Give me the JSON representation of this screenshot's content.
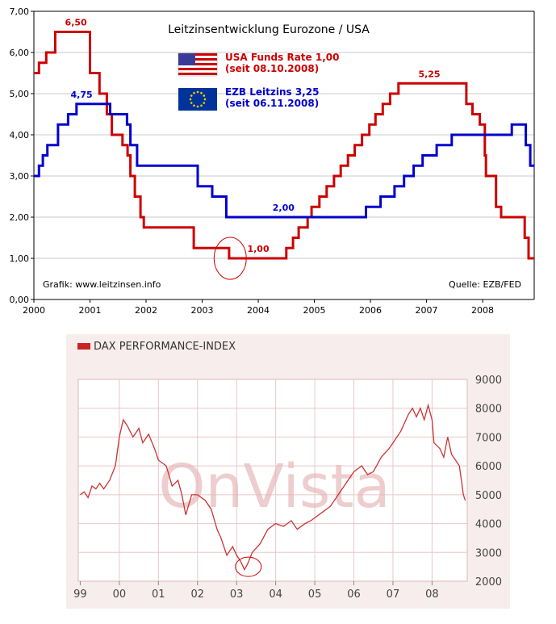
{
  "chart_data": [
    {
      "type": "line",
      "title": "Leitzinsentwicklung Eurozone / USA",
      "xlim": [
        2000,
        2008.92
      ],
      "ylim": [
        0,
        7
      ],
      "x_ticks": [
        "2000",
        "2001",
        "2002",
        "2003",
        "2004",
        "2005",
        "2006",
        "2007",
        "2008"
      ],
      "y_ticks": [
        "0,00",
        "1,00",
        "2,00",
        "3,00",
        "4,00",
        "5,00",
        "6,00",
        "7,00"
      ],
      "colors": {
        "usa": "#cc0000",
        "ezb": "#0000cc",
        "grid": "#c8c8c8",
        "axis": "#000000"
      },
      "legend": [
        {
          "flag": "us-flag-icon",
          "line1": "USA Funds Rate 1,00",
          "line2": "(seit 08.10.2008)",
          "color": "#cc0000"
        },
        {
          "flag": "eu-flag-icon",
          "line1": "EZB Leitzins 3,25",
          "line2": "(seit 06.11.2008)",
          "color": "#0000cc"
        }
      ],
      "credit_left": "Grafik: www.leitzinsen.info",
      "credit_right": "Quelle: EZB/FED",
      "series": [
        {
          "name": "USA Funds Rate",
          "color": "#cc0000",
          "steps": [
            [
              2000.0,
              5.5
            ],
            [
              2000.09,
              5.75
            ],
            [
              2000.22,
              6.0
            ],
            [
              2000.38,
              6.5
            ],
            [
              2001.0,
              5.5
            ],
            [
              2001.17,
              5.0
            ],
            [
              2001.3,
              4.5
            ],
            [
              2001.39,
              4.0
            ],
            [
              2001.58,
              3.75
            ],
            [
              2001.67,
              3.5
            ],
            [
              2001.72,
              3.0
            ],
            [
              2001.8,
              2.5
            ],
            [
              2001.9,
              2.0
            ],
            [
              2001.96,
              1.75
            ],
            [
              2002.85,
              1.25
            ],
            [
              2003.48,
              1.0
            ],
            [
              2004.5,
              1.25
            ],
            [
              2004.62,
              1.5
            ],
            [
              2004.72,
              1.75
            ],
            [
              2004.88,
              2.0
            ],
            [
              2004.95,
              2.25
            ],
            [
              2005.09,
              2.5
            ],
            [
              2005.22,
              2.75
            ],
            [
              2005.35,
              3.0
            ],
            [
              2005.47,
              3.25
            ],
            [
              2005.6,
              3.5
            ],
            [
              2005.72,
              3.75
            ],
            [
              2005.85,
              4.0
            ],
            [
              2005.98,
              4.25
            ],
            [
              2006.09,
              4.5
            ],
            [
              2006.22,
              4.75
            ],
            [
              2006.35,
              5.0
            ],
            [
              2006.5,
              5.25
            ],
            [
              2007.71,
              4.75
            ],
            [
              2007.82,
              4.5
            ],
            [
              2007.95,
              4.25
            ],
            [
              2008.04,
              3.5
            ],
            [
              2008.06,
              3.0
            ],
            [
              2008.24,
              2.25
            ],
            [
              2008.33,
              2.0
            ],
            [
              2008.75,
              1.5
            ],
            [
              2008.82,
              1.0
            ],
            [
              2008.92,
              1.0
            ]
          ]
        },
        {
          "name": "EZB Leitzins",
          "color": "#0000cc",
          "steps": [
            [
              2000.0,
              3.0
            ],
            [
              2000.09,
              3.25
            ],
            [
              2000.16,
              3.5
            ],
            [
              2000.24,
              3.75
            ],
            [
              2000.43,
              4.25
            ],
            [
              2000.61,
              4.5
            ],
            [
              2000.76,
              4.75
            ],
            [
              2001.36,
              4.5
            ],
            [
              2001.66,
              4.25
            ],
            [
              2001.72,
              3.75
            ],
            [
              2001.84,
              3.25
            ],
            [
              2002.92,
              2.75
            ],
            [
              2003.18,
              2.5
            ],
            [
              2003.43,
              2.0
            ],
            [
              2005.92,
              2.25
            ],
            [
              2006.18,
              2.5
            ],
            [
              2006.43,
              2.75
            ],
            [
              2006.6,
              3.0
            ],
            [
              2006.77,
              3.25
            ],
            [
              2006.93,
              3.5
            ],
            [
              2007.18,
              3.75
            ],
            [
              2007.45,
              4.0
            ],
            [
              2008.52,
              4.25
            ],
            [
              2008.77,
              3.75
            ],
            [
              2008.85,
              3.25
            ],
            [
              2008.92,
              3.25
            ]
          ]
        }
      ],
      "annotations": [
        {
          "text": "6,50",
          "x": 2000.75,
          "y": 6.5,
          "series": "usa"
        },
        {
          "text": "4,75",
          "x": 2000.85,
          "y": 4.75,
          "series": "ezb"
        },
        {
          "text": "1,00",
          "x": 2004.0,
          "y": 1.0,
          "series": "usa"
        },
        {
          "text": "2,00",
          "x": 2004.45,
          "y": 2.0,
          "series": "ezb"
        },
        {
          "text": "5,25",
          "x": 2007.05,
          "y": 5.25,
          "series": "usa"
        }
      ],
      "highlight": {
        "x": 2003.5,
        "y": 1.0
      }
    },
    {
      "type": "line",
      "title": "DAX PERFORMANCE-INDEX",
      "xlim": [
        1998.95,
        2008.9
      ],
      "ylim": [
        2000,
        9000
      ],
      "x_ticks": [
        "99",
        "00",
        "01",
        "02",
        "03",
        "04",
        "05",
        "06",
        "07",
        "08"
      ],
      "y_ticks": [
        "2000",
        "3000",
        "4000",
        "5000",
        "6000",
        "7000",
        "8000",
        "9000"
      ],
      "colors": {
        "line": "#cc3333",
        "legend_swatch": "#cc2222",
        "plot_bg": "#ffffff",
        "frame_bg": "#f8eded",
        "grid": "#e8c8c8",
        "tick_text": "#444444"
      },
      "watermark": "OnVista",
      "series": [
        {
          "name": "DAX",
          "x": [
            1999.0,
            1999.1,
            1999.2,
            1999.3,
            1999.4,
            1999.5,
            1999.6,
            1999.75,
            1999.9,
            2000.0,
            2000.1,
            2000.2,
            2000.35,
            2000.5,
            2000.6,
            2000.75,
            2000.9,
            2001.0,
            2001.2,
            2001.35,
            2001.5,
            2001.6,
            2001.7,
            2001.85,
            2002.0,
            2002.2,
            2002.35,
            2002.5,
            2002.6,
            2002.75,
            2002.9,
            2003.0,
            2003.1,
            2003.2,
            2003.28,
            2003.4,
            2003.6,
            2003.8,
            2004.0,
            2004.2,
            2004.4,
            2004.55,
            2004.75,
            2004.9,
            2005.0,
            2005.2,
            2005.4,
            2005.6,
            2005.8,
            2006.0,
            2006.2,
            2006.35,
            2006.5,
            2006.7,
            2006.9,
            2007.0,
            2007.2,
            2007.4,
            2007.5,
            2007.6,
            2007.7,
            2007.8,
            2007.9,
            2008.0,
            2008.05,
            2008.2,
            2008.3,
            2008.4,
            2008.5,
            2008.6,
            2008.7,
            2008.8,
            2008.85
          ],
          "values": [
            5000,
            5100,
            4900,
            5300,
            5200,
            5400,
            5200,
            5500,
            6000,
            7000,
            7600,
            7400,
            7000,
            7300,
            6800,
            7100,
            6600,
            6200,
            6000,
            5300,
            5500,
            5000,
            4300,
            5000,
            5000,
            4800,
            4500,
            3800,
            3500,
            2900,
            3200,
            2900,
            2700,
            2400,
            2600,
            3000,
            3300,
            3800,
            4000,
            3900,
            4100,
            3800,
            4000,
            4100,
            4200,
            4400,
            4600,
            5000,
            5400,
            5800,
            6000,
            5700,
            5800,
            6300,
            6600,
            6800,
            7200,
            7800,
            8000,
            7700,
            8000,
            7600,
            8100,
            7600,
            6800,
            6600,
            6300,
            7000,
            6400,
            6200,
            6000,
            5000,
            4800
          ]
        }
      ],
      "highlight": {
        "x": 2003.3,
        "y": 2500
      }
    }
  ]
}
